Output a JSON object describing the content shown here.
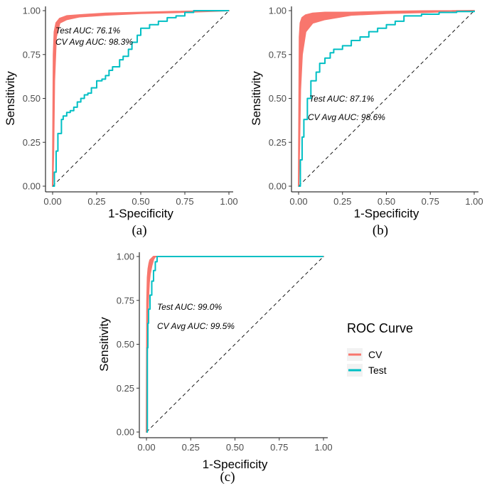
{
  "chart_data": [
    {
      "type": "line",
      "panel_label": "(a)",
      "xlabel": "1-Specificity",
      "ylabel": "Sensitivity",
      "xlim": [
        0,
        1
      ],
      "ylim": [
        0,
        1
      ],
      "xticks": [
        "0.00",
        "0.25",
        "0.50",
        "0.75",
        "1.00"
      ],
      "yticks": [
        "0.00",
        "0.25",
        "0.50",
        "0.75",
        "1.00"
      ],
      "grid": false,
      "reference_line": "diagonal dashed",
      "annotations": [
        "Test AUC: 76.1%",
        "CV Avg AUC: 98.3%"
      ],
      "series": [
        {
          "name": "CV",
          "color": "#F8766D",
          "band": true,
          "x": [
            0,
            0.005,
            0.01,
            0.02,
            0.04,
            0.08,
            0.15,
            0.3,
            0.5,
            0.7,
            1.0
          ],
          "y_low": [
            0,
            0.2,
            0.6,
            0.85,
            0.93,
            0.95,
            0.965,
            0.975,
            0.985,
            0.99,
            1.0
          ],
          "y_high": [
            0,
            0.75,
            0.88,
            0.93,
            0.955,
            0.97,
            0.975,
            0.985,
            0.99,
            0.995,
            1.0
          ]
        },
        {
          "name": "Test",
          "color": "#00BFC4",
          "band": false,
          "x": [
            0,
            0.01,
            0.02,
            0.03,
            0.05,
            0.06,
            0.08,
            0.1,
            0.12,
            0.14,
            0.16,
            0.18,
            0.2,
            0.22,
            0.25,
            0.28,
            0.3,
            0.32,
            0.34,
            0.38,
            0.4,
            0.43,
            0.45,
            0.48,
            0.5,
            0.55,
            0.6,
            0.65,
            0.7,
            0.75,
            0.8,
            1.0
          ],
          "y": [
            0,
            0.08,
            0.2,
            0.3,
            0.38,
            0.4,
            0.42,
            0.43,
            0.45,
            0.48,
            0.5,
            0.52,
            0.53,
            0.56,
            0.6,
            0.61,
            0.63,
            0.66,
            0.68,
            0.72,
            0.74,
            0.78,
            0.82,
            0.86,
            0.9,
            0.92,
            0.94,
            0.96,
            0.97,
            0.99,
            1.0,
            1.0
          ]
        }
      ]
    },
    {
      "type": "line",
      "panel_label": "(b)",
      "xlabel": "1-Specificity",
      "ylabel": "Sensitivity",
      "xlim": [
        0,
        1
      ],
      "ylim": [
        0,
        1
      ],
      "xticks": [
        "0.00",
        "0.25",
        "0.50",
        "0.75",
        "1.00"
      ],
      "yticks": [
        "0.00",
        "0.25",
        "0.50",
        "0.75",
        "1.00"
      ],
      "grid": false,
      "reference_line": "diagonal dashed",
      "annotations": [
        "Test AUC: 87.1%",
        "CV Avg AUC: 98.6%"
      ],
      "series": [
        {
          "name": "CV",
          "color": "#F8766D",
          "band": true,
          "x": [
            0,
            0.005,
            0.01,
            0.02,
            0.04,
            0.08,
            0.15,
            0.3,
            0.5,
            0.7,
            1.0
          ],
          "y_low": [
            0,
            0.25,
            0.55,
            0.75,
            0.88,
            0.93,
            0.95,
            0.975,
            0.985,
            0.99,
            1.0
          ],
          "y_high": [
            0,
            0.85,
            0.93,
            0.96,
            0.975,
            0.985,
            0.99,
            0.99,
            0.995,
            0.998,
            1.0
          ]
        },
        {
          "name": "Test",
          "color": "#00BFC4",
          "band": false,
          "x": [
            0,
            0.01,
            0.02,
            0.03,
            0.05,
            0.07,
            0.1,
            0.12,
            0.15,
            0.18,
            0.2,
            0.25,
            0.3,
            0.35,
            0.4,
            0.45,
            0.5,
            0.55,
            0.6,
            0.7,
            0.8,
            0.9,
            1.0
          ],
          "y": [
            0,
            0.15,
            0.28,
            0.38,
            0.5,
            0.6,
            0.65,
            0.7,
            0.73,
            0.76,
            0.78,
            0.8,
            0.83,
            0.85,
            0.88,
            0.9,
            0.92,
            0.94,
            0.97,
            0.98,
            0.99,
            0.995,
            1.0
          ]
        }
      ]
    },
    {
      "type": "line",
      "panel_label": "(c)",
      "xlabel": "1-Specificity",
      "ylabel": "Sensitivity",
      "xlim": [
        0,
        1
      ],
      "ylim": [
        0,
        1
      ],
      "xticks": [
        "0.00",
        "0.25",
        "0.50",
        "0.75",
        "1.00"
      ],
      "yticks": [
        "0.00",
        "0.25",
        "0.50",
        "0.75",
        "1.00"
      ],
      "grid": false,
      "reference_line": "diagonal dashed",
      "annotations": [
        "Test AUC: 99.0%",
        "CV Avg AUC: 99.5%"
      ],
      "series": [
        {
          "name": "CV",
          "color": "#F8766D",
          "band": true,
          "x": [
            0,
            0.003,
            0.006,
            0.01,
            0.015,
            0.02,
            0.03,
            0.04,
            0.05,
            1.0
          ],
          "y_low": [
            0,
            0.35,
            0.6,
            0.75,
            0.85,
            0.9,
            0.95,
            0.985,
            1.0,
            1.0
          ],
          "y_high": [
            0,
            0.75,
            0.88,
            0.93,
            0.96,
            0.98,
            0.99,
            1.0,
            1.0,
            1.0
          ]
        },
        {
          "name": "Test",
          "color": "#00BFC4",
          "band": false,
          "x": [
            0,
            0.005,
            0.008,
            0.012,
            0.02,
            0.03,
            0.04,
            0.05,
            0.06,
            1.0
          ],
          "y": [
            0,
            0.48,
            0.62,
            0.7,
            0.78,
            0.86,
            0.92,
            0.97,
            1.0,
            1.0
          ]
        }
      ]
    }
  ],
  "legend": {
    "title": "ROC Curve",
    "placement": "right of panel (c)",
    "items": [
      {
        "label": "CV",
        "color": "#F8766D"
      },
      {
        "label": "Test",
        "color": "#00BFC4"
      }
    ]
  }
}
